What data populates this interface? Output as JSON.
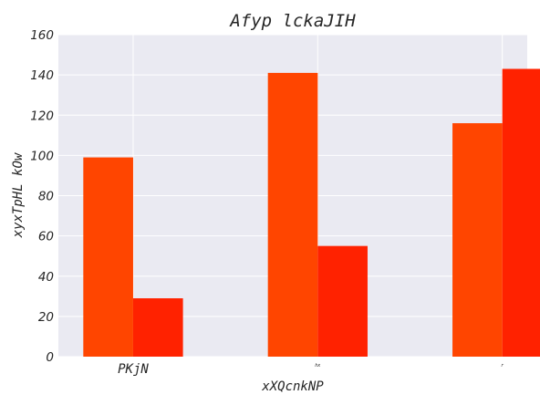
{
  "chart_data": {
    "type": "bar",
    "title": "Afyp lckaJIH",
    "xlabel": "xXQcnkNP",
    "ylabel": "xyxTpHL kOw",
    "categories": [
      "PKjN",
      "hx",
      "r"
    ],
    "series": [
      {
        "values": [
          99,
          141,
          116
        ],
        "color": "#FF4500"
      },
      {
        "values": [
          29,
          55,
          143
        ],
        "color": "#FF2200"
      }
    ],
    "ylim": [
      0,
      160
    ],
    "yticks": [
      0,
      20,
      40,
      60,
      80,
      100,
      120,
      140,
      160
    ],
    "grid": true,
    "background": "#EAEAF2",
    "grid_color": "#FFFFFF"
  }
}
